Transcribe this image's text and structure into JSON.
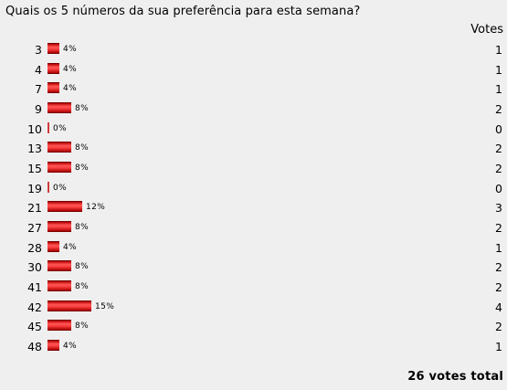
{
  "poll": {
    "question": "Quais os 5 números da sua preferência para esta semana?",
    "votes_header": "Votes",
    "total_label": "26 votes total",
    "bar_color": "#e02020",
    "rows": [
      {
        "number": "3",
        "percent_label": "4%",
        "percent": 4,
        "votes": "1"
      },
      {
        "number": "4",
        "percent_label": "4%",
        "percent": 4,
        "votes": "1"
      },
      {
        "number": "7",
        "percent_label": "4%",
        "percent": 4,
        "votes": "1"
      },
      {
        "number": "9",
        "percent_label": "8%",
        "percent": 8,
        "votes": "2"
      },
      {
        "number": "10",
        "percent_label": "0%",
        "percent": 0,
        "votes": "0"
      },
      {
        "number": "13",
        "percent_label": "8%",
        "percent": 8,
        "votes": "2"
      },
      {
        "number": "15",
        "percent_label": "8%",
        "percent": 8,
        "votes": "2"
      },
      {
        "number": "19",
        "percent_label": "0%",
        "percent": 0,
        "votes": "0"
      },
      {
        "number": "21",
        "percent_label": "12%",
        "percent": 12,
        "votes": "3"
      },
      {
        "number": "27",
        "percent_label": "8%",
        "percent": 8,
        "votes": "2"
      },
      {
        "number": "28",
        "percent_label": "4%",
        "percent": 4,
        "votes": "1"
      },
      {
        "number": "30",
        "percent_label": "8%",
        "percent": 8,
        "votes": "2"
      },
      {
        "number": "41",
        "percent_label": "8%",
        "percent": 8,
        "votes": "2"
      },
      {
        "number": "42",
        "percent_label": "15%",
        "percent": 15,
        "votes": "4"
      },
      {
        "number": "45",
        "percent_label": "8%",
        "percent": 8,
        "votes": "2"
      },
      {
        "number": "48",
        "percent_label": "4%",
        "percent": 4,
        "votes": "1"
      }
    ]
  }
}
